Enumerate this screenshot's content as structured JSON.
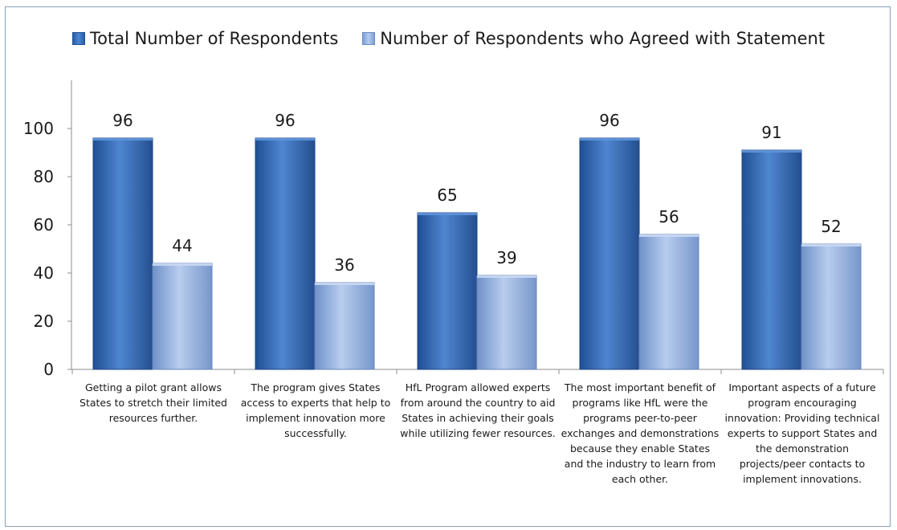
{
  "chart_data": {
    "type": "bar",
    "categories": [
      "Getting a pilot grant allows States to stretch their limited resources further.",
      "The program gives States access to experts that help to implement innovation more successfully.",
      "HfL Program allowed experts from around the country to aid States in achieving their goals while utilizing fewer resources.",
      "The most important benefit of programs like HfL were the programs peer-to-peer exchanges and demonstrations because they enable States and the industry to learn from each other.",
      "Important aspects of a future program encouraging innovation: Providing technical experts to support States and the demonstration projects/peer contacts to implement innovations."
    ],
    "series": [
      {
        "name": "Total Number of Respondents",
        "values": [
          96,
          96,
          65,
          96,
          91
        ],
        "color": "#2f64ad"
      },
      {
        "name": "Number of Respondents who Agreed with Statement",
        "values": [
          44,
          36,
          39,
          56,
          52
        ],
        "color": "#8eaee0"
      }
    ],
    "yticks": [
      "0",
      "20",
      "40",
      "60",
      "80",
      "100"
    ],
    "ylim": [
      0,
      115
    ],
    "legend_position": "top",
    "grid": false,
    "data_labels": true
  }
}
